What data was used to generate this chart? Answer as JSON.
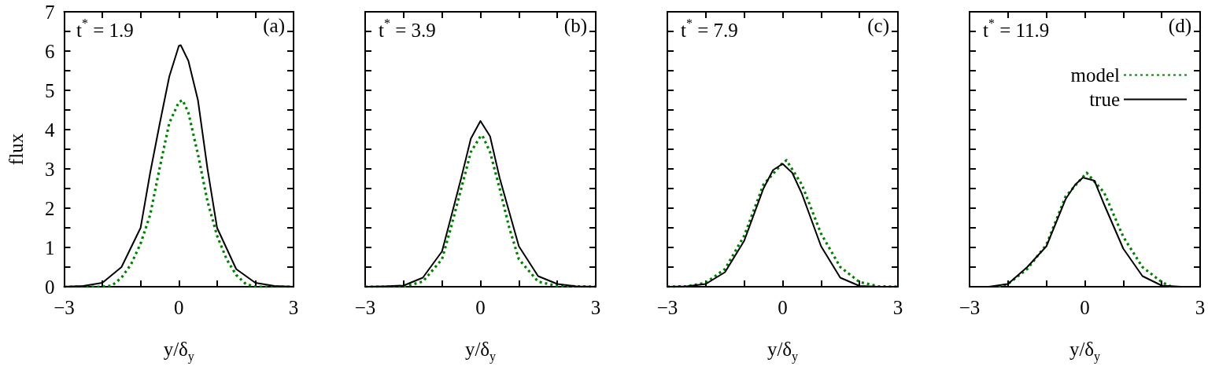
{
  "chart_data": [
    {
      "type": "line",
      "title": "t$^{*}$ = 1.9",
      "annotations": [
        "(a)"
      ],
      "xlabel": "y/δ$_{y}$",
      "ylabel": "flux",
      "xlim": [
        -3,
        3
      ],
      "xticks": [
        -3,
        {
          "value": -2,
          "label": null
        },
        {
          "value": -1,
          "label": null
        },
        0,
        {
          "value": 1,
          "label": null
        },
        {
          "value": 2,
          "label": null
        },
        3
      ],
      "ylim": [
        0,
        7
      ],
      "yticks": [
        0,
        {
          "value": 0.5,
          "label": null
        },
        1,
        {
          "value": 1.5,
          "label": null
        },
        2,
        {
          "value": 2.5,
          "label": null
        },
        3,
        {
          "value": 3.5,
          "label": null
        },
        4,
        {
          "value": 4.5,
          "label": null
        },
        5,
        {
          "value": 5.5,
          "label": null
        },
        6,
        {
          "value": 6.5,
          "label": null
        },
        7
      ],
      "grid": false,
      "marker": "none",
      "legend": false,
      "series": [
        {
          "color": "#008000",
          "line_style": "dotted",
          "x": [
            -3,
            -2,
            -1.75,
            -1.5,
            -1.25,
            -1,
            -0.75,
            -0.5,
            -0.25,
            0,
            0.1,
            0.25,
            0.5,
            0.75,
            1,
            1.25,
            1.5,
            1.75,
            2,
            3
          ],
          "values": [
            0,
            0,
            0.03,
            0.23,
            0.57,
            1.1,
            1.83,
            3.03,
            4.17,
            4.7,
            4.75,
            4.43,
            3.37,
            2.17,
            1.3,
            0.7,
            0.3,
            0.07,
            0,
            0
          ]
        },
        {
          "color": "#000000",
          "line_style": "solid",
          "x": [
            -3,
            -2.5,
            -2,
            -1.5,
            -1,
            -0.75,
            -0.5,
            -0.25,
            0,
            0.05,
            0.25,
            0.5,
            0.75,
            1,
            1.5,
            2,
            2.5,
            3
          ],
          "values": [
            0,
            0.02,
            0.1,
            0.5,
            1.5,
            2.9,
            4.15,
            5.35,
            6.13,
            6.15,
            5.75,
            4.75,
            3,
            1.5,
            0.45,
            0.1,
            0.02,
            0
          ]
        }
      ]
    },
    {
      "type": "line",
      "title": "t$^{*}$ = 3.9",
      "annotations": [
        "(b)"
      ],
      "xlabel": "y/δ$_{y}$",
      "tick_labels": "x",
      "xlim": [
        -3,
        3
      ],
      "xticks": [
        -3,
        {
          "value": -2,
          "label": null
        },
        {
          "value": -1,
          "label": null
        },
        0,
        {
          "value": 1,
          "label": null
        },
        {
          "value": 2,
          "label": null
        },
        3
      ],
      "ylim": [
        0,
        7
      ],
      "yticks": [
        0,
        {
          "value": 0.5,
          "label": null
        },
        1,
        {
          "value": 1.5,
          "label": null
        },
        2,
        {
          "value": 2.5,
          "label": null
        },
        3,
        {
          "value": 3.5,
          "label": null
        },
        4,
        {
          "value": 4.5,
          "label": null
        },
        5,
        {
          "value": 5.5,
          "label": null
        },
        6,
        {
          "value": 6.5,
          "label": null
        },
        7
      ],
      "grid": false,
      "marker": "none",
      "legend": false,
      "series": [
        {
          "color": "#008000",
          "line_style": "dotted",
          "x": [
            -3,
            -2,
            -1.5,
            -1,
            -0.75,
            -0.5,
            -0.25,
            0,
            0.05,
            0.25,
            0.5,
            0.75,
            1,
            1.5,
            2,
            3
          ],
          "values": [
            0,
            0,
            0.13,
            0.7,
            1.57,
            2.5,
            3.43,
            3.83,
            3.85,
            3.43,
            2.5,
            1.5,
            0.7,
            0.13,
            0.02,
            0
          ]
        },
        {
          "color": "#000000",
          "line_style": "solid",
          "x": [
            -3,
            -2.5,
            -2,
            -1.5,
            -1,
            -0.75,
            -0.5,
            -0.25,
            0,
            0.25,
            0.5,
            0.75,
            1,
            1.5,
            2,
            2.5,
            3
          ],
          "values": [
            0,
            0.01,
            0.03,
            0.23,
            0.9,
            1.83,
            2.77,
            3.77,
            4.22,
            3.83,
            2.77,
            1.9,
            1.03,
            0.27,
            0.07,
            0.01,
            0
          ]
        }
      ]
    },
    {
      "type": "line",
      "title": "t$^{*}$ = 7.9",
      "annotations": [
        "(c)"
      ],
      "xlabel": "y/δ$_{y}$",
      "tick_labels": "x",
      "xlim": [
        -3,
        3
      ],
      "xticks": [
        -3,
        {
          "value": -2,
          "label": null
        },
        {
          "value": -1,
          "label": null
        },
        0,
        {
          "value": 1,
          "label": null
        },
        {
          "value": 2,
          "label": null
        },
        3
      ],
      "ylim": [
        0,
        7
      ],
      "yticks": [
        0,
        {
          "value": 0.5,
          "label": null
        },
        1,
        {
          "value": 1.5,
          "label": null
        },
        2,
        {
          "value": 2.5,
          "label": null
        },
        3,
        {
          "value": 3.5,
          "label": null
        },
        4,
        {
          "value": 4.5,
          "label": null
        },
        5,
        {
          "value": 5.5,
          "label": null
        },
        6,
        {
          "value": 6.5,
          "label": null
        },
        7
      ],
      "grid": false,
      "marker": "none",
      "legend": false,
      "series": [
        {
          "color": "#008000",
          "line_style": "dotted",
          "x": [
            -3,
            -2.5,
            -2,
            -1.5,
            -1,
            -0.5,
            0,
            0.1,
            0.5,
            1,
            1.5,
            2,
            2.5,
            3
          ],
          "values": [
            0,
            0.01,
            0.1,
            0.45,
            1.3,
            2.6,
            3.15,
            3.22,
            2.6,
            1.35,
            0.5,
            0.12,
            0.01,
            0
          ]
        },
        {
          "color": "#000000",
          "line_style": "solid",
          "x": [
            -3,
            -2.5,
            -2,
            -1.5,
            -1,
            -0.5,
            -0.25,
            0,
            0.25,
            0.5,
            1,
            1.5,
            2,
            2.5,
            3
          ],
          "values": [
            0,
            0.01,
            0.07,
            0.37,
            1.17,
            2.5,
            2.97,
            3.13,
            2.9,
            2.37,
            1.03,
            0.23,
            0.02,
            0,
            0
          ]
        }
      ]
    },
    {
      "type": "line",
      "title": "t$^{*}$ = 11.9",
      "annotations": [
        "(d)"
      ],
      "xlabel": "y/δ$_{y}$",
      "tick_labels": "x",
      "xlim": [
        -3,
        3
      ],
      "xticks": [
        -3,
        {
          "value": -2,
          "label": null
        },
        {
          "value": -1,
          "label": null
        },
        0,
        {
          "value": 1,
          "label": null
        },
        {
          "value": 2,
          "label": null
        },
        3
      ],
      "ylim": [
        0,
        7
      ],
      "yticks": [
        0,
        {
          "value": 0.5,
          "label": null
        },
        1,
        {
          "value": 1.5,
          "label": null
        },
        2,
        {
          "value": 2.5,
          "label": null
        },
        3,
        {
          "value": 3.5,
          "label": null
        },
        4,
        {
          "value": 4.5,
          "label": null
        },
        5,
        {
          "value": 5.5,
          "label": null
        },
        6,
        {
          "value": 6.5,
          "label": null
        },
        7
      ],
      "grid": false,
      "marker": "none",
      "legend": "top right",
      "series": [
        {
          "name": "model",
          "color": "#008000",
          "line_style": "dotted",
          "x": [
            -2.25,
            -2,
            -1.5,
            -1,
            -0.5,
            0,
            0.05,
            0.5,
            1,
            1.5,
            2,
            2.25
          ],
          "values": [
            0,
            0.07,
            0.45,
            1.07,
            2.3,
            2.85,
            2.9,
            2.4,
            1.27,
            0.5,
            0.12,
            0
          ]
        },
        {
          "name": "true",
          "color": "#000000",
          "line_style": "solid",
          "x": [
            -2.5,
            -2,
            -1.5,
            -1,
            -0.5,
            -0.25,
            -0.05,
            0.25,
            0.5,
            1,
            1.5,
            2,
            2.5
          ],
          "values": [
            0,
            0.07,
            0.5,
            1.03,
            2.23,
            2.6,
            2.78,
            2.7,
            2.1,
            0.97,
            0.27,
            0.03,
            0
          ]
        }
      ]
    }
  ]
}
